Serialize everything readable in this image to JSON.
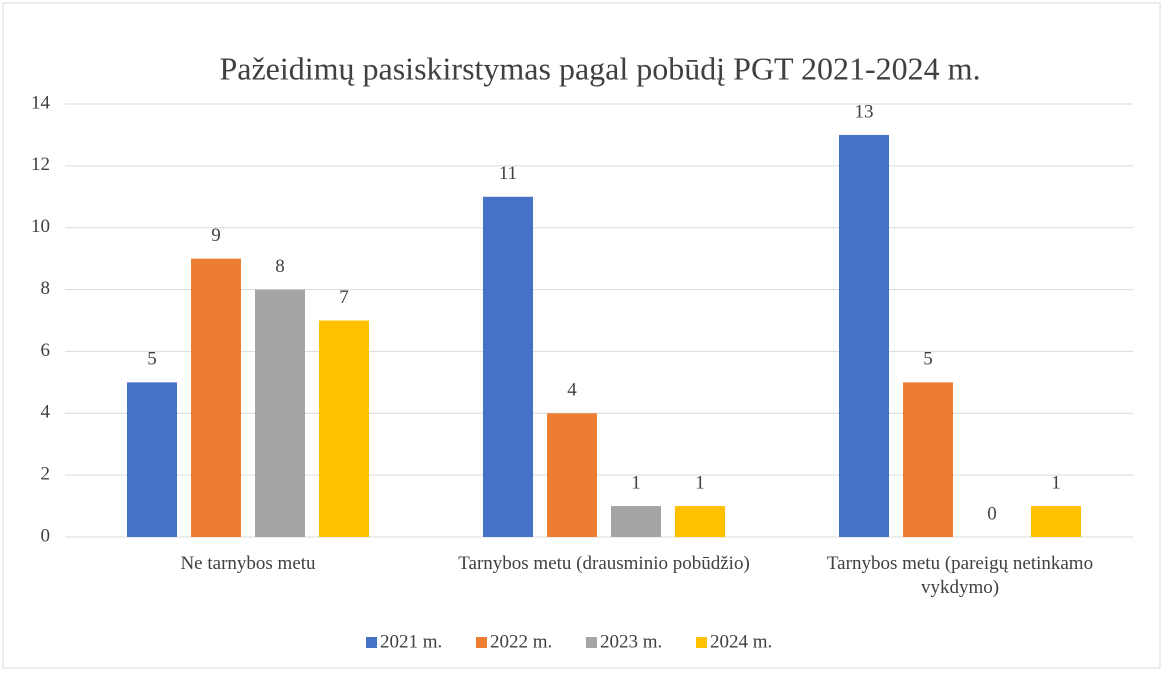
{
  "chart_data": {
    "type": "bar",
    "title": "Pažeidimų pasiskirstymas pagal pobūdį PGT 2021-2024 m.",
    "categories": [
      "Ne tarnybos metu",
      "Tarnybos metu (drausminio pobūdžio)",
      "Tarnybos metu (pareigų netinkamo vykdymo)"
    ],
    "series": [
      {
        "name": "2021 m.",
        "color": "#4472c4",
        "values": [
          5,
          11,
          13
        ]
      },
      {
        "name": "2022 m.",
        "color": "#ed7d31",
        "values": [
          9,
          4,
          5
        ]
      },
      {
        "name": "2023 m.",
        "color": "#a5a5a5",
        "values": [
          8,
          1,
          0
        ]
      },
      {
        "name": "2024 m.",
        "color": "#ffc000",
        "values": [
          7,
          1,
          1
        ]
      }
    ],
    "ylim": [
      0,
      14
    ],
    "yticks": [
      0,
      2,
      4,
      6,
      8,
      10,
      12,
      14
    ],
    "grid": true,
    "legend": "bottom"
  }
}
